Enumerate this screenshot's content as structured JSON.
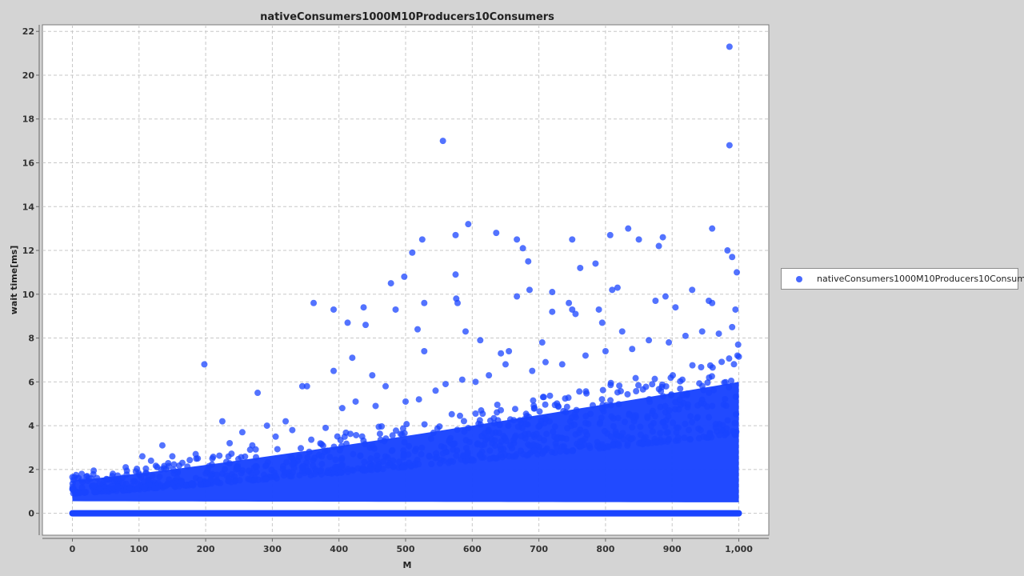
{
  "chart_data": {
    "type": "scatter",
    "title": "nativeConsumers1000M10Producers10Consumers",
    "xlabel": "M",
    "ylabel": "wait time[ms]",
    "xlim": [
      -45,
      1045
    ],
    "ylim": [
      -1,
      22.3
    ],
    "x_ticks": [
      "0",
      "100",
      "200",
      "300",
      "400",
      "500",
      "600",
      "700",
      "800",
      "900",
      "1,000"
    ],
    "y_ticks": [
      "0",
      "2",
      "4",
      "6",
      "8",
      "10",
      "12",
      "14",
      "16",
      "18",
      "20",
      "22"
    ],
    "grid": true,
    "legend_position": "right",
    "series": [
      {
        "name": "nativeConsumers1000M10Producers10Consumers",
        "color": "#1a44ff",
        "points": [
          [
            198,
            6.8
          ],
          [
            225,
            4.2
          ],
          [
            278,
            5.5
          ],
          [
            292,
            4.0
          ],
          [
            320,
            4.2
          ],
          [
            345,
            5.8
          ],
          [
            352,
            5.8
          ],
          [
            362,
            9.6
          ],
          [
            392,
            9.3
          ],
          [
            392,
            6.5
          ],
          [
            413,
            8.7
          ],
          [
            420,
            7.1
          ],
          [
            437,
            9.4
          ],
          [
            440,
            8.6
          ],
          [
            450,
            6.3
          ],
          [
            478,
            10.5
          ],
          [
            485,
            9.3
          ],
          [
            498,
            10.8
          ],
          [
            510,
            11.9
          ],
          [
            518,
            8.4
          ],
          [
            525,
            12.5
          ],
          [
            528,
            9.6
          ],
          [
            528,
            7.4
          ],
          [
            556,
            17.0
          ],
          [
            575,
            12.7
          ],
          [
            575,
            10.9
          ],
          [
            576,
            9.8
          ],
          [
            578,
            9.6
          ],
          [
            590,
            8.3
          ],
          [
            594,
            13.2
          ],
          [
            612,
            7.9
          ],
          [
            636,
            12.8
          ],
          [
            643,
            7.3
          ],
          [
            655,
            7.4
          ],
          [
            667,
            12.5
          ],
          [
            667,
            9.9
          ],
          [
            676,
            12.1
          ],
          [
            684,
            11.5
          ],
          [
            686,
            10.2
          ],
          [
            705,
            7.8
          ],
          [
            720,
            10.1
          ],
          [
            720,
            9.2
          ],
          [
            745,
            9.6
          ],
          [
            750,
            12.5
          ],
          [
            750,
            9.3
          ],
          [
            755,
            9.1
          ],
          [
            762,
            11.2
          ],
          [
            785,
            11.4
          ],
          [
            790,
            9.3
          ],
          [
            795,
            8.7
          ],
          [
            807,
            12.7
          ],
          [
            810,
            10.2
          ],
          [
            818,
            10.3
          ],
          [
            825,
            8.3
          ],
          [
            834,
            13.0
          ],
          [
            850,
            12.5
          ],
          [
            875,
            9.7
          ],
          [
            880,
            12.2
          ],
          [
            886,
            12.6
          ],
          [
            890,
            9.9
          ],
          [
            905,
            9.4
          ],
          [
            930,
            10.2
          ],
          [
            955,
            9.7
          ],
          [
            960,
            13.0
          ],
          [
            960,
            9.6
          ],
          [
            983,
            12.0
          ],
          [
            986,
            21.3
          ],
          [
            986,
            16.8
          ],
          [
            990,
            11.7
          ],
          [
            997,
            11.0
          ],
          [
            995,
            9.3
          ],
          [
            999,
            7.7
          ],
          [
            8,
            1.6
          ],
          [
            14,
            1.8
          ],
          [
            22,
            1.7
          ],
          [
            32,
            1.95
          ],
          [
            60,
            1.7
          ],
          [
            80,
            2.1
          ],
          [
            105,
            2.6
          ],
          [
            118,
            2.4
          ],
          [
            135,
            3.1
          ],
          [
            150,
            2.6
          ],
          [
            165,
            2.3
          ],
          [
            185,
            2.7
          ],
          [
            210,
            2.5
          ],
          [
            236,
            3.2
          ],
          [
            255,
            3.7
          ],
          [
            270,
            3.1
          ],
          [
            305,
            3.5
          ],
          [
            330,
            3.8
          ],
          [
            380,
            3.9
          ],
          [
            405,
            4.8
          ],
          [
            425,
            5.1
          ],
          [
            455,
            4.9
          ],
          [
            470,
            5.8
          ],
          [
            500,
            5.1
          ],
          [
            520,
            5.2
          ],
          [
            545,
            5.6
          ],
          [
            560,
            5.9
          ],
          [
            585,
            6.1
          ],
          [
            605,
            6.0
          ],
          [
            625,
            6.3
          ],
          [
            650,
            6.8
          ],
          [
            690,
            6.5
          ],
          [
            710,
            6.9
          ],
          [
            735,
            6.8
          ],
          [
            770,
            7.2
          ],
          [
            800,
            7.4
          ],
          [
            840,
            7.5
          ],
          [
            865,
            7.9
          ],
          [
            895,
            7.8
          ],
          [
            920,
            8.1
          ],
          [
            945,
            8.3
          ],
          [
            970,
            8.2
          ],
          [
            990,
            8.5
          ],
          [
            998,
            7.2
          ]
        ],
        "bulk_band": "dense cloud above a zero-valued baseline row spanning x = 0 to 1,000; upper edge rises from about 1.5 at x = 0 to about 6 at x = 1,000"
      }
    ]
  }
}
